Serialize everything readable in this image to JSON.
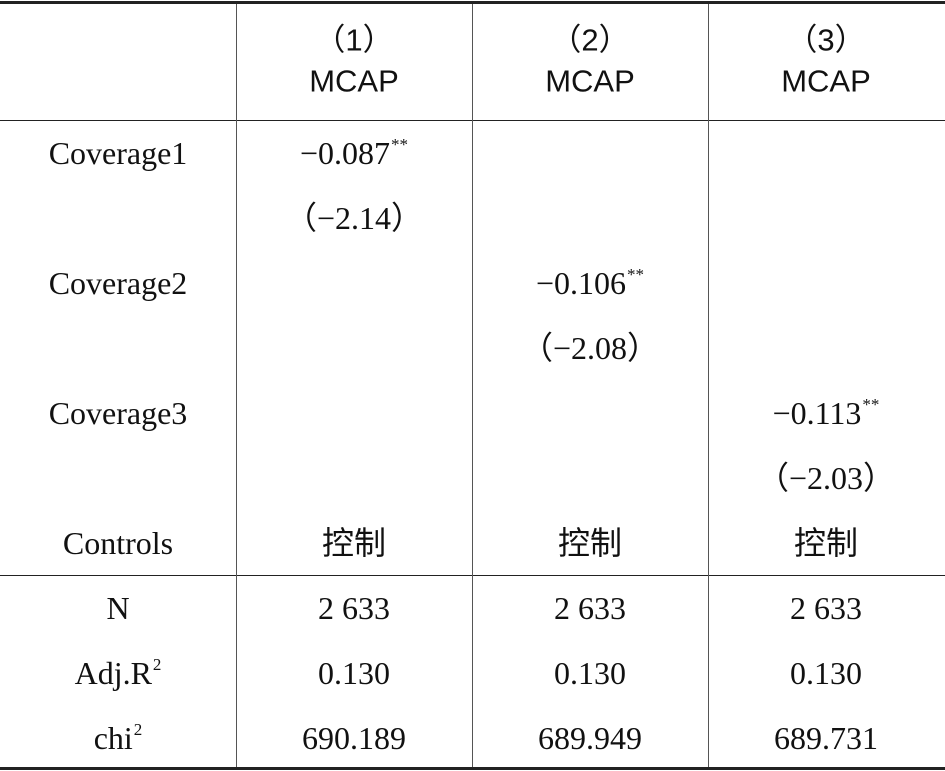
{
  "table": {
    "header": [
      {
        "number": "（1）",
        "label": "MCAP"
      },
      {
        "number": "（2）",
        "label": "MCAP"
      },
      {
        "number": "（3）",
        "label": "MCAP"
      }
    ],
    "rows": [
      {
        "label": "Coverage1",
        "cells": [
          {
            "text": "−0.087",
            "sup": "**"
          },
          null,
          null
        ]
      },
      {
        "label": null,
        "cells": [
          "（−2.14）",
          null,
          null
        ]
      },
      {
        "label": "Coverage2",
        "cells": [
          null,
          {
            "text": "−0.106",
            "sup": "**"
          },
          null
        ]
      },
      {
        "label": null,
        "cells": [
          null,
          "（−2.08）",
          null
        ]
      },
      {
        "label": "Coverage3",
        "cells": [
          null,
          null,
          {
            "text": "−0.113",
            "sup": "**"
          }
        ]
      },
      {
        "label": null,
        "cells": [
          null,
          null,
          "（−2.03）"
        ]
      },
      {
        "label": "Controls",
        "cells": [
          "控制",
          "控制",
          "控制"
        ]
      },
      {
        "label": "N",
        "cells": [
          "2 633",
          "2 633",
          "2 633"
        ]
      },
      {
        "label": {
          "text": "Adj.R",
          "sup": "2"
        },
        "cells": [
          "0.130",
          "0.130",
          "0.130"
        ]
      },
      {
        "label": {
          "text": "chi",
          "sup": "2"
        },
        "cells": [
          "690.189",
          "689.949",
          "689.731"
        ]
      }
    ]
  }
}
